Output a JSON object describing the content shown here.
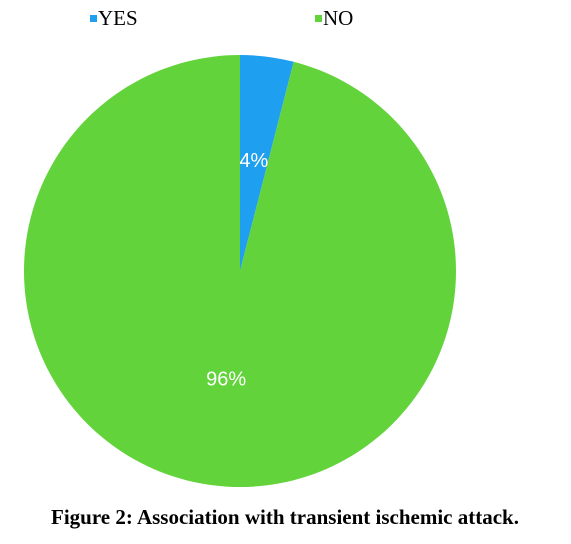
{
  "chart_data": {
    "type": "pie",
    "caption": "Figure 2: Association with transient ischemic attack.",
    "categories": [
      "YES",
      "NO"
    ],
    "values": [
      4,
      96
    ],
    "value_labels": [
      "4%",
      "96%"
    ],
    "colors": [
      "#1e9ff0",
      "#63d33c"
    ]
  }
}
